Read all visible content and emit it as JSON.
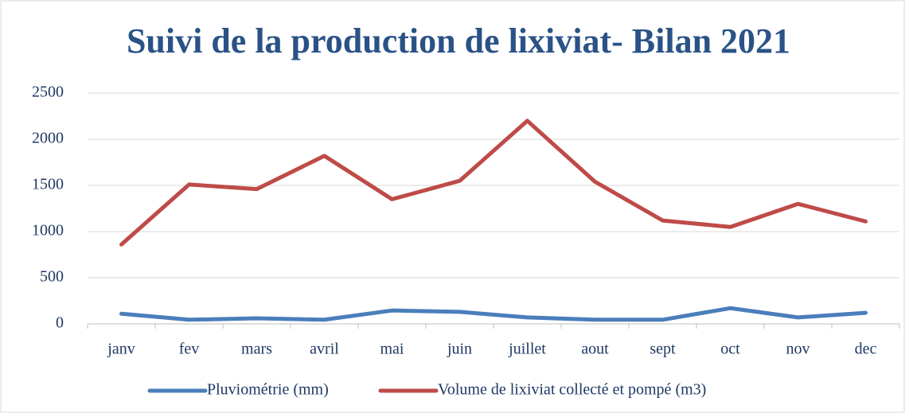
{
  "chart_data": {
    "type": "line",
    "title": "Suivi de la production de lixiviat- Bilan 2021",
    "categories": [
      "janv",
      "fev",
      "mars",
      "avril",
      "mai",
      "juin",
      "juillet",
      "aout",
      "sept",
      "oct",
      "nov",
      "dec"
    ],
    "series": [
      {
        "name": "Pluviométrie (mm)",
        "color": "#4a7ebb",
        "values": [
          110,
          45,
          60,
          45,
          145,
          130,
          70,
          45,
          45,
          170,
          70,
          120
        ]
      },
      {
        "name": "Volume de lixiviat collecté et pompé (m3)",
        "color": "#be4b48",
        "values": [
          860,
          1510,
          1460,
          1820,
          1350,
          1550,
          2200,
          1540,
          1120,
          1050,
          1300,
          1110
        ]
      }
    ],
    "ylim": [
      0,
      2500
    ],
    "yticks": [
      0,
      500,
      1000,
      1500,
      2000,
      2500
    ],
    "grid": true,
    "legend": "bottom"
  }
}
